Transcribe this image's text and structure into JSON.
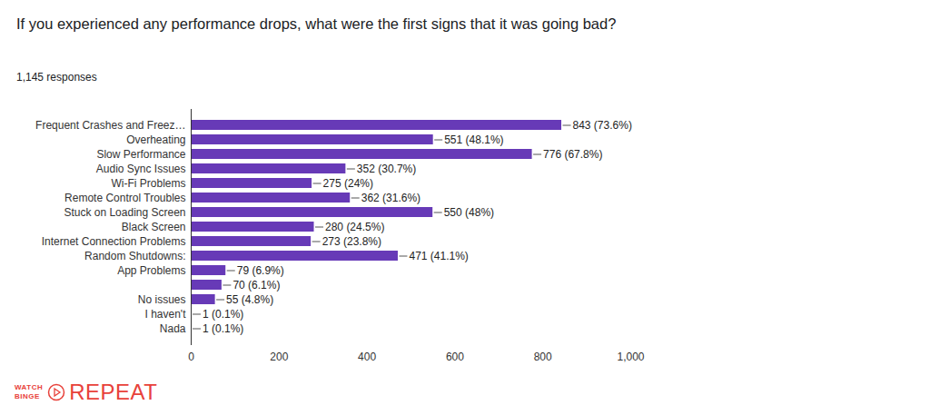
{
  "chart_data": {
    "type": "bar",
    "orientation": "horizontal",
    "title": "If you experienced any performance drops, what were the first signs that it was going bad?",
    "subtitle": "1,145 responses",
    "categories": [
      "Frequent Crashes and Freez…",
      "Overheating",
      "Slow Performance",
      "Audio Sync Issues",
      "Wi-Fi Problems",
      "Remote Control Troubles",
      "Stuck on Loading Screen",
      "Black Screen",
      "Internet Connection Problems",
      "Random Shutdowns:",
      "App Problems",
      null,
      "No issues",
      "I haven't",
      "Nada"
    ],
    "values": [
      843,
      551,
      776,
      352,
      275,
      362,
      550,
      280,
      273,
      471,
      79,
      70,
      55,
      1,
      1
    ],
    "value_labels": [
      "843 (73.6%)",
      "551 (48.1%)",
      "776 (67.8%)",
      "352 (30.7%)",
      "275 (24%)",
      "362 (31.6%)",
      "550 (48%)",
      "280 (24.5%)",
      "273 (23.8%)",
      "471 (41.1%)",
      "79 (6.9%)",
      "70 (6.1%)",
      "55 (4.8%)",
      "1 (0.1%)",
      "1 (0.1%)"
    ],
    "data_labels": true,
    "color": "#673ab7",
    "xlim": [
      0,
      1000
    ],
    "xticks": [
      0,
      200,
      400,
      600,
      800,
      {
        "value": 1000,
        "label": "1,000"
      }
    ],
    "grid": false,
    "annotations": [
      "WATCH",
      "BINGE",
      "REPEAT"
    ]
  }
}
